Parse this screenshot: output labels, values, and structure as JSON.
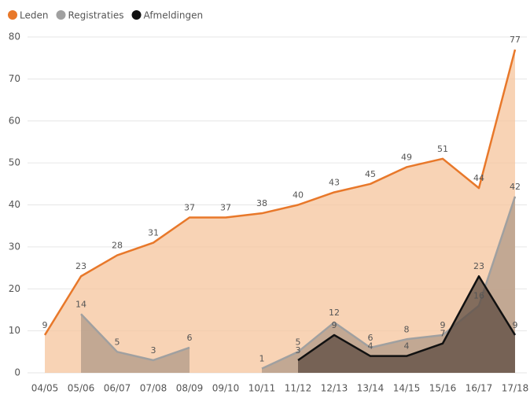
{
  "chart_data": {
    "type": "area",
    "categories": [
      "04/05",
      "05/06",
      "06/07",
      "07/08",
      "08/09",
      "09/10",
      "10/11",
      "11/12",
      "12/13",
      "13/14",
      "14/15",
      "15/16",
      "16/17",
      "17/18"
    ],
    "series": [
      {
        "name": "Leden",
        "color": "#e8782a",
        "fill": "#f5c49c",
        "values": [
          9,
          23,
          28,
          31,
          37,
          37,
          38,
          40,
          43,
          45,
          49,
          51,
          44,
          77
        ]
      },
      {
        "name": "Registraties",
        "color": "#a0a0a0",
        "fill": "#b09a88",
        "values": [
          null,
          14,
          5,
          3,
          6,
          null,
          1,
          5,
          12,
          6,
          8,
          9,
          16,
          42
        ]
      },
      {
        "name": "Afmeldingen",
        "color": "#111111",
        "fill": "#5c4b40",
        "values": [
          null,
          null,
          null,
          null,
          null,
          null,
          null,
          3,
          9,
          4,
          4,
          7,
          23,
          9
        ]
      }
    ],
    "ylim": [
      0,
      80
    ],
    "yticks": [
      0,
      10,
      20,
      30,
      40,
      50,
      60,
      70,
      80
    ],
    "grid": true,
    "legend": "top-left"
  }
}
